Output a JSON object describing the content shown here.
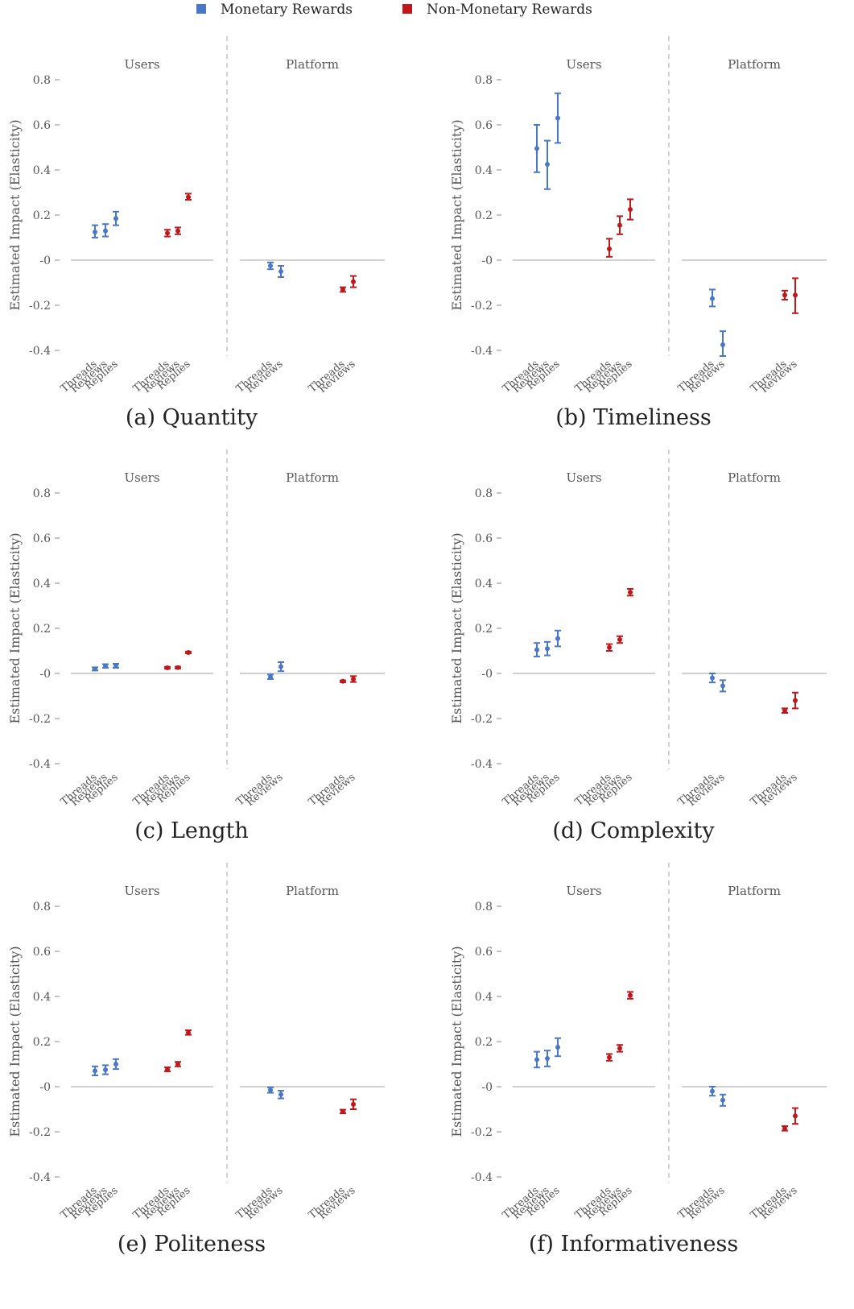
{
  "legend": {
    "items": [
      {
        "label": "Monetary Rewards",
        "color": "#4a78c8"
      },
      {
        "label": "Non-Monetary Rewards",
        "color": "#c0181a"
      }
    ]
  },
  "chart_data": [
    {
      "type": "scatter",
      "caption": "(a) Quantity",
      "ylabel": "Estimated Impact (Elasticity)",
      "ylim": [
        -0.4,
        0.8
      ],
      "yticks": [
        "0.8",
        "0.6",
        "0.4",
        "0.2",
        "-0",
        "-0.2",
        "-0.4"
      ],
      "facets": [
        {
          "label": "Users",
          "groups": [
            {
              "series": "Monetary Rewards",
              "points": [
                {
                  "x": "Threads",
                  "y": 0.125,
                  "lo": 0.1,
                  "hi": 0.155
                },
                {
                  "x": "Reviews",
                  "y": 0.13,
                  "lo": 0.105,
                  "hi": 0.16
                },
                {
                  "x": "Replies",
                  "y": 0.185,
                  "lo": 0.155,
                  "hi": 0.215
                }
              ]
            },
            {
              "series": "Non-Monetary Rewards",
              "points": [
                {
                  "x": "Threads",
                  "y": 0.12,
                  "lo": 0.105,
                  "hi": 0.135
                },
                {
                  "x": "Reviews",
                  "y": 0.13,
                  "lo": 0.115,
                  "hi": 0.145
                },
                {
                  "x": "Replies",
                  "y": 0.28,
                  "lo": 0.268,
                  "hi": 0.295
                }
              ]
            }
          ]
        },
        {
          "label": "Platform",
          "groups": [
            {
              "series": "Monetary Rewards",
              "points": [
                {
                  "x": "Threads",
                  "y": -0.025,
                  "lo": -0.04,
                  "hi": -0.01
                },
                {
                  "x": "Reviews",
                  "y": -0.05,
                  "lo": -0.075,
                  "hi": -0.025
                }
              ]
            },
            {
              "series": "Non-Monetary Rewards",
              "points": [
                {
                  "x": "Threads",
                  "y": -0.13,
                  "lo": -0.14,
                  "hi": -0.12
                },
                {
                  "x": "Reviews",
                  "y": -0.095,
                  "lo": -0.12,
                  "hi": -0.07
                }
              ]
            }
          ]
        }
      ]
    },
    {
      "type": "scatter",
      "caption": "(b) Timeliness",
      "ylabel": "Estimated Impact (Elasticity)",
      "ylim": [
        -0.4,
        0.8
      ],
      "yticks": [
        "0.8",
        "0.6",
        "0.4",
        "0.2",
        "-0",
        "-0.2",
        "-0.4"
      ],
      "facets": [
        {
          "label": "Users",
          "groups": [
            {
              "series": "Monetary Rewards",
              "points": [
                {
                  "x": "Threads",
                  "y": 0.495,
                  "lo": 0.39,
                  "hi": 0.6
                },
                {
                  "x": "Reviews",
                  "y": 0.425,
                  "lo": 0.315,
                  "hi": 0.53
                },
                {
                  "x": "Replies",
                  "y": 0.63,
                  "lo": 0.52,
                  "hi": 0.74
                }
              ]
            },
            {
              "series": "Non-Monetary Rewards",
              "points": [
                {
                  "x": "Threads",
                  "y": 0.05,
                  "lo": 0.015,
                  "hi": 0.095
                },
                {
                  "x": "Reviews",
                  "y": 0.155,
                  "lo": 0.115,
                  "hi": 0.195
                },
                {
                  "x": "Replies",
                  "y": 0.225,
                  "lo": 0.18,
                  "hi": 0.27
                }
              ]
            }
          ]
        },
        {
          "label": "Platform",
          "groups": [
            {
              "series": "Monetary Rewards",
              "points": [
                {
                  "x": "Threads",
                  "y": -0.17,
                  "lo": -0.205,
                  "hi": -0.13
                },
                {
                  "x": "Reviews",
                  "y": -0.375,
                  "lo": -0.425,
                  "hi": -0.315
                }
              ]
            },
            {
              "series": "Non-Monetary Rewards",
              "points": [
                {
                  "x": "Threads",
                  "y": -0.155,
                  "lo": -0.175,
                  "hi": -0.135
                },
                {
                  "x": "Reviews",
                  "y": -0.155,
                  "lo": -0.235,
                  "hi": -0.08
                }
              ]
            }
          ]
        }
      ]
    },
    {
      "type": "scatter",
      "caption": "(c) Length",
      "ylabel": "Estimated Impact (Elasticity)",
      "ylim": [
        -0.4,
        0.8
      ],
      "yticks": [
        "0.8",
        "0.6",
        "0.4",
        "0.2",
        "-0",
        "-0.2",
        "-0.4"
      ],
      "facets": [
        {
          "label": "Users",
          "groups": [
            {
              "series": "Monetary Rewards",
              "points": [
                {
                  "x": "Threads",
                  "y": 0.02,
                  "lo": 0.013,
                  "hi": 0.027
                },
                {
                  "x": "Reviews",
                  "y": 0.033,
                  "lo": 0.025,
                  "hi": 0.041
                },
                {
                  "x": "Replies",
                  "y": 0.034,
                  "lo": 0.025,
                  "hi": 0.043
                }
              ]
            },
            {
              "series": "Non-Monetary Rewards",
              "points": [
                {
                  "x": "Threads",
                  "y": 0.025,
                  "lo": 0.021,
                  "hi": 0.029
                },
                {
                  "x": "Reviews",
                  "y": 0.026,
                  "lo": 0.022,
                  "hi": 0.03
                },
                {
                  "x": "Replies",
                  "y": 0.093,
                  "lo": 0.089,
                  "hi": 0.097
                }
              ]
            }
          ]
        },
        {
          "label": "Platform",
          "groups": [
            {
              "series": "Monetary Rewards",
              "points": [
                {
                  "x": "Threads",
                  "y": -0.015,
                  "lo": -0.025,
                  "hi": -0.005
                },
                {
                  "x": "Reviews",
                  "y": 0.03,
                  "lo": 0.01,
                  "hi": 0.05
                }
              ]
            },
            {
              "series": "Non-Monetary Rewards",
              "points": [
                {
                  "x": "Threads",
                  "y": -0.035,
                  "lo": -0.039,
                  "hi": -0.031
                },
                {
                  "x": "Reviews",
                  "y": -0.025,
                  "lo": -0.038,
                  "hi": -0.012
                }
              ]
            }
          ]
        }
      ]
    },
    {
      "type": "scatter",
      "caption": "(d) Complexity",
      "ylabel": "Estimated Impact (Elasticity)",
      "ylim": [
        -0.4,
        0.8
      ],
      "yticks": [
        "0.8",
        "0.6",
        "0.4",
        "0.2",
        "-0",
        "-0.2",
        "-0.4"
      ],
      "facets": [
        {
          "label": "Users",
          "groups": [
            {
              "series": "Monetary Rewards",
              "points": [
                {
                  "x": "Threads",
                  "y": 0.105,
                  "lo": 0.075,
                  "hi": 0.135
                },
                {
                  "x": "Reviews",
                  "y": 0.11,
                  "lo": 0.08,
                  "hi": 0.14
                },
                {
                  "x": "Replies",
                  "y": 0.155,
                  "lo": 0.12,
                  "hi": 0.19
                }
              ]
            },
            {
              "series": "Non-Monetary Rewards",
              "points": [
                {
                  "x": "Threads",
                  "y": 0.115,
                  "lo": 0.1,
                  "hi": 0.13
                },
                {
                  "x": "Reviews",
                  "y": 0.15,
                  "lo": 0.135,
                  "hi": 0.165
                },
                {
                  "x": "Replies",
                  "y": 0.36,
                  "lo": 0.345,
                  "hi": 0.375
                }
              ]
            }
          ]
        },
        {
          "label": "Platform",
          "groups": [
            {
              "series": "Monetary Rewards",
              "points": [
                {
                  "x": "Threads",
                  "y": -0.02,
                  "lo": -0.04,
                  "hi": 0.0
                },
                {
                  "x": "Reviews",
                  "y": -0.055,
                  "lo": -0.08,
                  "hi": -0.03
                }
              ]
            },
            {
              "series": "Non-Monetary Rewards",
              "points": [
                {
                  "x": "Threads",
                  "y": -0.165,
                  "lo": -0.175,
                  "hi": -0.155
                },
                {
                  "x": "Reviews",
                  "y": -0.12,
                  "lo": -0.155,
                  "hi": -0.085
                }
              ]
            }
          ]
        }
      ]
    },
    {
      "type": "scatter",
      "caption": "(e) Politeness",
      "ylabel": "Estimated Impact (Elasticity)",
      "ylim": [
        -0.4,
        0.8
      ],
      "yticks": [
        "0.8",
        "0.6",
        "0.4",
        "0.2",
        "-0",
        "-0.2",
        "-0.4"
      ],
      "facets": [
        {
          "label": "Users",
          "groups": [
            {
              "series": "Monetary Rewards",
              "points": [
                {
                  "x": "Threads",
                  "y": 0.07,
                  "lo": 0.05,
                  "hi": 0.09
                },
                {
                  "x": "Reviews",
                  "y": 0.075,
                  "lo": 0.055,
                  "hi": 0.095
                },
                {
                  "x": "Replies",
                  "y": 0.1,
                  "lo": 0.078,
                  "hi": 0.122
                }
              ]
            },
            {
              "series": "Non-Monetary Rewards",
              "points": [
                {
                  "x": "Threads",
                  "y": 0.077,
                  "lo": 0.068,
                  "hi": 0.086
                },
                {
                  "x": "Reviews",
                  "y": 0.1,
                  "lo": 0.09,
                  "hi": 0.11
                },
                {
                  "x": "Replies",
                  "y": 0.24,
                  "lo": 0.23,
                  "hi": 0.25
                }
              ]
            }
          ]
        },
        {
          "label": "Platform",
          "groups": [
            {
              "series": "Monetary Rewards",
              "points": [
                {
                  "x": "Threads",
                  "y": -0.015,
                  "lo": -0.027,
                  "hi": -0.003
                },
                {
                  "x": "Reviews",
                  "y": -0.035,
                  "lo": -0.052,
                  "hi": -0.018
                }
              ]
            },
            {
              "series": "Non-Monetary Rewards",
              "points": [
                {
                  "x": "Threads",
                  "y": -0.11,
                  "lo": -0.118,
                  "hi": -0.102
                },
                {
                  "x": "Reviews",
                  "y": -0.078,
                  "lo": -0.1,
                  "hi": -0.056
                }
              ]
            }
          ]
        }
      ]
    },
    {
      "type": "scatter",
      "caption": "(f) Informativeness",
      "ylabel": "Estimated Impact (Elasticity)",
      "ylim": [
        -0.4,
        0.8
      ],
      "yticks": [
        "0.8",
        "0.6",
        "0.4",
        "0.2",
        "-0",
        "-0.2",
        "-0.4"
      ],
      "facets": [
        {
          "label": "Users",
          "groups": [
            {
              "series": "Monetary Rewards",
              "points": [
                {
                  "x": "Threads",
                  "y": 0.12,
                  "lo": 0.085,
                  "hi": 0.155
                },
                {
                  "x": "Reviews",
                  "y": 0.125,
                  "lo": 0.09,
                  "hi": 0.16
                },
                {
                  "x": "Replies",
                  "y": 0.175,
                  "lo": 0.135,
                  "hi": 0.215
                }
              ]
            },
            {
              "series": "Non-Monetary Rewards",
              "points": [
                {
                  "x": "Threads",
                  "y": 0.13,
                  "lo": 0.115,
                  "hi": 0.145
                },
                {
                  "x": "Reviews",
                  "y": 0.17,
                  "lo": 0.155,
                  "hi": 0.185
                },
                {
                  "x": "Replies",
                  "y": 0.405,
                  "lo": 0.39,
                  "hi": 0.42
                }
              ]
            }
          ]
        },
        {
          "label": "Platform",
          "groups": [
            {
              "series": "Monetary Rewards",
              "points": [
                {
                  "x": "Threads",
                  "y": -0.02,
                  "lo": -0.04,
                  "hi": 0.0
                },
                {
                  "x": "Reviews",
                  "y": -0.06,
                  "lo": -0.085,
                  "hi": -0.035
                }
              ]
            },
            {
              "series": "Non-Monetary Rewards",
              "points": [
                {
                  "x": "Threads",
                  "y": -0.185,
                  "lo": -0.195,
                  "hi": -0.175
                },
                {
                  "x": "Reviews",
                  "y": -0.13,
                  "lo": -0.165,
                  "hi": -0.095
                }
              ]
            }
          ]
        }
      ]
    }
  ]
}
